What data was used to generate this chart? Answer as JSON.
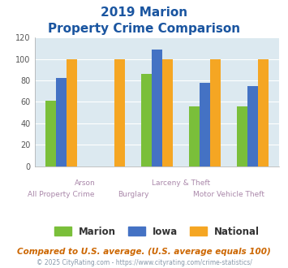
{
  "title_line1": "2019 Marion",
  "title_line2": "Property Crime Comparison",
  "marion_values": [
    61,
    0,
    86,
    56,
    56
  ],
  "iowa_values": [
    82,
    0,
    109,
    78,
    75
  ],
  "national_values": [
    100,
    100,
    100,
    100,
    100
  ],
  "marion_color": "#7abf3a",
  "iowa_color": "#4472c4",
  "national_color": "#f5a623",
  "ylim": [
    0,
    120
  ],
  "yticks": [
    0,
    20,
    40,
    60,
    80,
    100,
    120
  ],
  "legend_labels": [
    "Marion",
    "Iowa",
    "National"
  ],
  "footnote1": "Compared to U.S. average. (U.S. average equals 100)",
  "footnote2": "© 2025 CityRating.com - https://www.cityrating.com/crime-statistics/",
  "bg_color": "#dce9f0",
  "title_color": "#1a55a0",
  "footnote1_color": "#cc6600",
  "footnote2_color": "#8899aa",
  "xlabel_color": "#aa88aa"
}
